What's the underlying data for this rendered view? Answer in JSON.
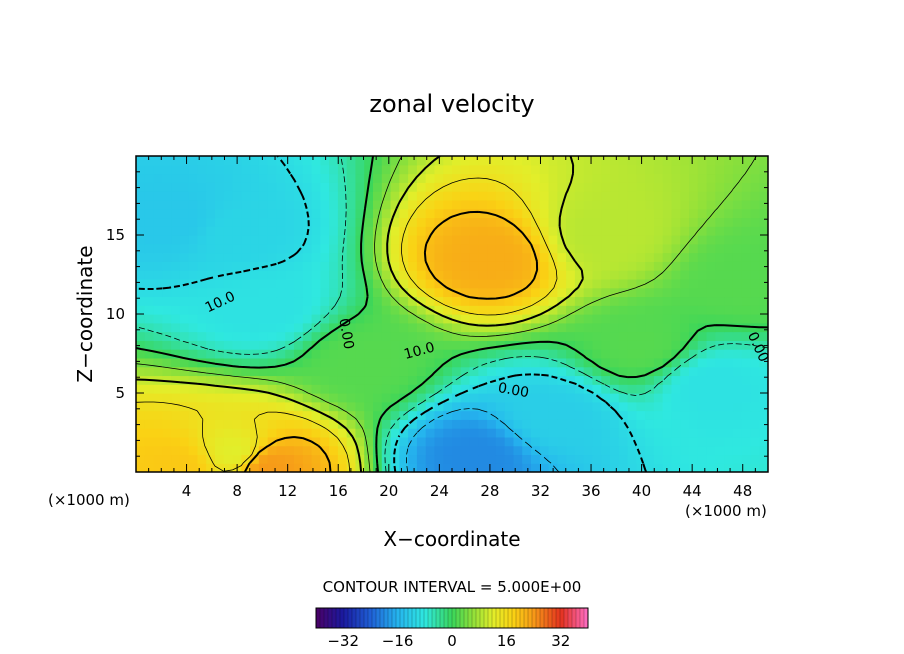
{
  "chart_data": {
    "type": "heatmap",
    "title": "zonal velocity",
    "xlabel": "X−coordinate",
    "ylabel": "Z−coordinate",
    "x_unit_left": "(×1000 m)",
    "x_unit_right": "(×1000 m)",
    "xlim": [
      0,
      50
    ],
    "ylim": [
      0,
      20
    ],
    "x_ticks": [
      4,
      8,
      12,
      16,
      20,
      24,
      28,
      32,
      36,
      40,
      44,
      48
    ],
    "y_ticks": [
      5,
      10,
      15
    ],
    "contour_interval_text": "CONTOUR INTERVAL = 5.000E+00",
    "contour_labels": [
      {
        "text": "10.0",
        "x": 6.8,
        "y": 10.5,
        "rot": 25
      },
      {
        "text": "0.00",
        "x": 16.3,
        "y": 8.7,
        "rot": -80
      },
      {
        "text": "10.0",
        "x": 22.5,
        "y": 7.4,
        "rot": 15
      },
      {
        "text": "0.00",
        "x": 29.8,
        "y": 4.9,
        "rot": -10
      },
      {
        "text": "0.00",
        "x": 48.9,
        "y": 7.8,
        "rot": -65
      }
    ],
    "colorbar": {
      "range": [
        -40,
        40
      ],
      "tick_values": [
        -32,
        -16,
        0,
        16,
        32
      ],
      "tick_labels": [
        "−32",
        "−16",
        "0",
        "16",
        "32"
      ]
    },
    "field_features": [
      {
        "x": 28,
        "y": 13.5,
        "value": 22
      },
      {
        "x": 3,
        "y": 16,
        "value": -13
      },
      {
        "x": 8,
        "y": 15,
        "value": -11
      },
      {
        "x": 10,
        "y": 10.5,
        "value": -9
      },
      {
        "x": 27,
        "y": 1,
        "value": -20
      },
      {
        "x": 33,
        "y": 3.5,
        "value": -12
      },
      {
        "x": 45.5,
        "y": 5.5,
        "value": -9
      },
      {
        "x": 10.3,
        "y": 0.5,
        "value": 24
      },
      {
        "x": 3.5,
        "y": 0.4,
        "value": 19
      },
      {
        "x": 8,
        "y": 1.2,
        "value": 12
      },
      {
        "x": 37,
        "y": 15,
        "value": 9
      },
      {
        "x": 48,
        "y": 12,
        "value": 2
      },
      {
        "x": 40,
        "y": 8,
        "value": 2
      },
      {
        "x": 18,
        "y": 7,
        "value": 2
      }
    ]
  }
}
